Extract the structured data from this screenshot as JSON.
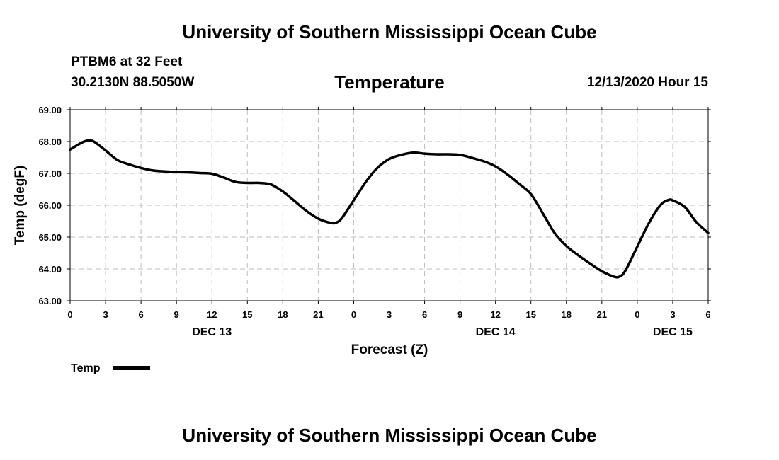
{
  "header": {
    "title": "University of Southern Mississippi Ocean Cube",
    "station": "PTBM6 at 32 Feet",
    "coords": "30.2130N 88.5050W",
    "datetime": "12/13/2020 Hour 15"
  },
  "footer": {
    "title": "University of Southern Mississippi Ocean Cube"
  },
  "chart_data": {
    "type": "line",
    "title": "Temperature",
    "xlabel": "Forecast (Z)",
    "ylabel": "Temp (degF)",
    "xlim": [
      0,
      54
    ],
    "ylim": [
      63,
      69
    ],
    "grid": true,
    "y_ticks": [
      "63.00",
      "64.00",
      "65.00",
      "66.00",
      "67.00",
      "68.00",
      "69.00"
    ],
    "x_ticks": [
      {
        "hour": 0,
        "label": "0"
      },
      {
        "hour": 3,
        "label": "3"
      },
      {
        "hour": 6,
        "label": "6"
      },
      {
        "hour": 9,
        "label": "9"
      },
      {
        "hour": 12,
        "label": "12"
      },
      {
        "hour": 15,
        "label": "15"
      },
      {
        "hour": 18,
        "label": "18"
      },
      {
        "hour": 21,
        "label": "21"
      },
      {
        "hour": 24,
        "label": "0"
      },
      {
        "hour": 27,
        "label": "3"
      },
      {
        "hour": 30,
        "label": "6"
      },
      {
        "hour": 33,
        "label": "9"
      },
      {
        "hour": 36,
        "label": "12"
      },
      {
        "hour": 39,
        "label": "15"
      },
      {
        "hour": 42,
        "label": "18"
      },
      {
        "hour": 45,
        "label": "21"
      },
      {
        "hour": 48,
        "label": "0"
      },
      {
        "hour": 51,
        "label": "3"
      },
      {
        "hour": 54,
        "label": "6"
      }
    ],
    "day_labels": [
      {
        "hour": 12,
        "label": "DEC 13"
      },
      {
        "hour": 36,
        "label": "DEC 14"
      },
      {
        "hour": 51,
        "label": "DEC 15"
      }
    ],
    "legend": {
      "position": "bottom-left",
      "entries": [
        "Temp"
      ]
    },
    "series": [
      {
        "name": "Temp",
        "color": "#000000",
        "x": [
          0,
          1,
          1.5,
          2,
          3,
          4,
          5,
          6,
          7,
          8,
          9,
          10,
          11,
          12,
          13,
          14,
          15,
          16,
          17,
          18,
          19,
          20,
          21,
          22,
          22.5,
          23,
          24,
          25,
          26,
          27,
          28,
          29,
          30,
          31,
          32,
          33,
          34,
          35,
          36,
          37,
          38,
          39,
          40,
          41,
          42,
          43,
          44,
          45,
          46,
          46.5,
          47,
          48,
          49,
          50,
          50.7,
          51,
          52,
          53,
          54
        ],
        "values": [
          67.75,
          67.97,
          68.03,
          68.0,
          67.72,
          67.42,
          67.28,
          67.17,
          67.09,
          67.06,
          67.04,
          67.03,
          67.01,
          66.99,
          66.87,
          66.73,
          66.7,
          66.7,
          66.65,
          66.43,
          66.13,
          65.82,
          65.58,
          65.45,
          65.45,
          65.6,
          66.15,
          66.72,
          67.17,
          67.45,
          67.58,
          67.65,
          67.62,
          67.6,
          67.6,
          67.58,
          67.49,
          67.38,
          67.22,
          66.97,
          66.67,
          66.35,
          65.75,
          65.13,
          64.72,
          64.43,
          64.17,
          63.93,
          63.76,
          63.76,
          63.95,
          64.7,
          65.45,
          66.02,
          66.17,
          66.15,
          65.95,
          65.47,
          65.13
        ]
      }
    ]
  }
}
